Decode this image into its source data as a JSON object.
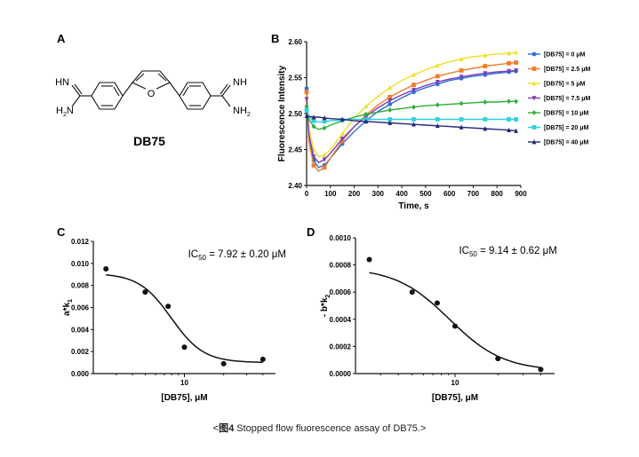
{
  "figure": {
    "caption_prefix": "<",
    "caption_label": "图4",
    "caption_text": " Stopped flow fluorescence assay of DB75.>",
    "panel_letters": [
      "A",
      "B",
      "C",
      "D"
    ]
  },
  "structure": {
    "name": "DB75",
    "labels": {
      "hn_left": "HN",
      "h2n_left": "H",
      "h2n_left_sub": "2",
      "h2n_left_n": "N",
      "o": "O",
      "nh_right": "NH",
      "nh2_right": "NH",
      "nh2_right_sub": "2"
    }
  },
  "chart_data": [
    {
      "panel": "B",
      "type": "line",
      "xlabel": "Time, s",
      "ylabel": "Fluorescence Intensity",
      "xlim": [
        0,
        900
      ],
      "ylim": [
        2.4,
        2.6
      ],
      "xticks": [
        "0",
        "100",
        "200",
        "300",
        "400",
        "500",
        "600",
        "700",
        "800",
        "900"
      ],
      "yticks": [
        "2.40",
        "2.45",
        "2.50",
        "2.55",
        "2.60"
      ],
      "legend_position": "right",
      "series": [
        {
          "name": "[DB75] = 0 μM",
          "color": "#2e6fd6",
          "marker": "circle",
          "x": [
            0,
            10,
            30,
            50,
            75,
            100,
            150,
            200,
            250,
            300,
            350,
            400,
            450,
            500,
            550,
            600,
            650,
            700,
            750,
            800,
            850,
            880
          ],
          "y": [
            2.535,
            2.47,
            2.435,
            2.425,
            2.428,
            2.438,
            2.458,
            2.475,
            2.49,
            2.503,
            2.513,
            2.522,
            2.53,
            2.536,
            2.541,
            2.546,
            2.549,
            2.552,
            2.554,
            2.556,
            2.558,
            2.559
          ]
        },
        {
          "name": "[DB75] = 2.5 μM",
          "color": "#f07c2c",
          "marker": "square",
          "x": [
            0,
            10,
            30,
            50,
            75,
            100,
            150,
            200,
            250,
            300,
            350,
            400,
            450,
            500,
            550,
            600,
            650,
            700,
            750,
            800,
            850,
            880
          ],
          "y": [
            2.53,
            2.46,
            2.428,
            2.42,
            2.425,
            2.438,
            2.462,
            2.482,
            2.498,
            2.512,
            2.523,
            2.532,
            2.54,
            2.546,
            2.552,
            2.556,
            2.56,
            2.563,
            2.566,
            2.568,
            2.57,
            2.571
          ]
        },
        {
          "name": "[DB75] = 5 μM",
          "color": "#ede12a",
          "marker": "triangle",
          "x": [
            0,
            10,
            30,
            50,
            75,
            100,
            150,
            200,
            250,
            300,
            350,
            400,
            450,
            500,
            550,
            600,
            650,
            700,
            750,
            800,
            850,
            880
          ],
          "y": [
            2.52,
            2.48,
            2.45,
            2.44,
            2.442,
            2.45,
            2.472,
            2.494,
            2.51,
            2.524,
            2.536,
            2.546,
            2.554,
            2.561,
            2.567,
            2.572,
            2.576,
            2.579,
            2.581,
            2.583,
            2.584,
            2.585
          ]
        },
        {
          "name": "[DB75] = 7.5 μM",
          "color": "#7b3fb5",
          "marker": "triangle-down",
          "x": [
            0,
            10,
            30,
            50,
            75,
            100,
            150,
            200,
            250,
            300,
            350,
            400,
            450,
            500,
            550,
            600,
            650,
            700,
            750,
            800,
            850,
            880
          ],
          "y": [
            2.52,
            2.47,
            2.44,
            2.432,
            2.436,
            2.445,
            2.465,
            2.482,
            2.496,
            2.508,
            2.518,
            2.526,
            2.533,
            2.539,
            2.544,
            2.548,
            2.551,
            2.554,
            2.556,
            2.558,
            2.559,
            2.56
          ]
        },
        {
          "name": "[DB75] = 10 μM",
          "color": "#2fae3a",
          "marker": "diamond",
          "x": [
            0,
            10,
            30,
            50,
            75,
            100,
            150,
            200,
            250,
            300,
            350,
            400,
            450,
            500,
            550,
            600,
            650,
            700,
            750,
            800,
            850,
            880
          ],
          "y": [
            2.51,
            2.492,
            2.482,
            2.478,
            2.48,
            2.484,
            2.49,
            2.495,
            2.499,
            2.502,
            2.505,
            2.507,
            2.509,
            2.511,
            2.512,
            2.513,
            2.514,
            2.515,
            2.516,
            2.516,
            2.517,
            2.517
          ]
        },
        {
          "name": "[DB75] = 20 μM",
          "color": "#2fd0dc",
          "marker": "square",
          "x": [
            0,
            10,
            30,
            50,
            75,
            100,
            150,
            200,
            250,
            300,
            350,
            400,
            450,
            500,
            550,
            600,
            650,
            700,
            750,
            800,
            850,
            880
          ],
          "y": [
            2.505,
            2.495,
            2.49,
            2.488,
            2.489,
            2.49,
            2.491,
            2.492,
            2.492,
            2.492,
            2.492,
            2.492,
            2.492,
            2.492,
            2.492,
            2.492,
            2.492,
            2.492,
            2.492,
            2.492,
            2.492,
            2.492
          ]
        },
        {
          "name": "[DB75] = 40 μM",
          "color": "#23287a",
          "marker": "triangle",
          "x": [
            0,
            10,
            30,
            50,
            75,
            100,
            150,
            200,
            250,
            300,
            350,
            400,
            450,
            500,
            550,
            600,
            650,
            700,
            750,
            800,
            850,
            880
          ],
          "y": [
            2.497,
            2.496,
            2.495,
            2.495,
            2.494,
            2.493,
            2.492,
            2.49,
            2.489,
            2.488,
            2.487,
            2.486,
            2.485,
            2.484,
            2.483,
            2.482,
            2.481,
            2.48,
            2.479,
            2.478,
            2.477,
            2.476
          ]
        }
      ]
    },
    {
      "panel": "C",
      "type": "scatter",
      "xlabel": "[DB75], μM",
      "ylabel": "a*k",
      "ylabel_sub": "1",
      "xscale": "log",
      "xlim": [
        2,
        50
      ],
      "ylim": [
        0,
        0.012
      ],
      "xticks": [
        "10"
      ],
      "yticks": [
        "0.000",
        "0.002",
        "0.004",
        "0.006",
        "0.008",
        "0.010",
        "0.012"
      ],
      "annotation": {
        "prefix": "IC",
        "sub": "50",
        "text": " = 7.92 ± 0.20 μM"
      },
      "points": {
        "x": [
          2.5,
          5,
          7.5,
          10,
          20,
          40
        ],
        "y": [
          0.0095,
          0.0074,
          0.0061,
          0.0024,
          0.0009,
          0.0013
        ]
      },
      "fit": {
        "model": "logistic",
        "top": 0.0091,
        "bottom": 0.001,
        "ic50": 7.92,
        "hill": 3.5
      }
    },
    {
      "panel": "D",
      "type": "scatter",
      "xlabel": "[DB75], μM",
      "ylabel": "- b*k",
      "ylabel_sub": "2",
      "xscale": "log",
      "xlim": [
        2,
        50
      ],
      "ylim": [
        0,
        0.001
      ],
      "xticks": [
        "10"
      ],
      "yticks": [
        "0.0000",
        "0.0002",
        "0.0004",
        "0.0006",
        "0.0008",
        "0.0010"
      ],
      "annotation": {
        "prefix": "IC",
        "sub": "50",
        "text": " = 9.14 ± 0.62 μM"
      },
      "points": {
        "x": [
          2.5,
          5,
          7.5,
          10,
          20,
          40
        ],
        "y": [
          0.00084,
          0.0006,
          0.00052,
          0.00035,
          0.00011,
          3e-05
        ]
      },
      "fit": {
        "model": "logistic",
        "top": 0.00078,
        "bottom": 2e-05,
        "ic50": 9.14,
        "hill": 2.3
      }
    }
  ]
}
